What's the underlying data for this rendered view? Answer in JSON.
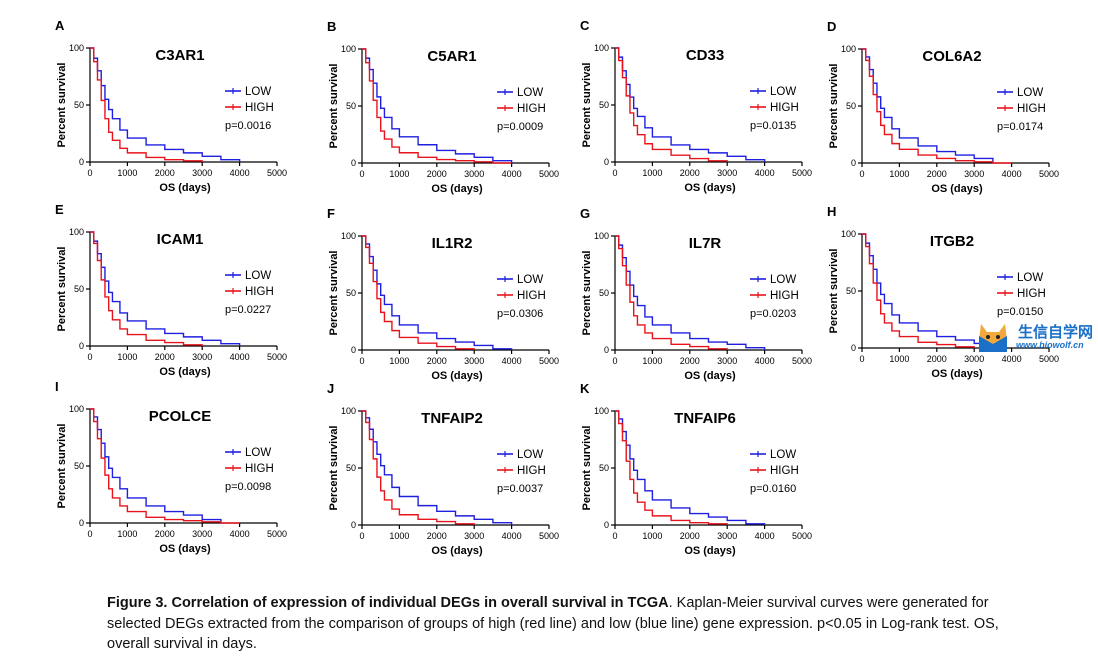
{
  "figure_caption": {
    "label": "Figure 3",
    "title": "Correlation of expression of individual DEGs in overall survival in TCGA",
    "body": "Kaplan-Meier survival curves were generated for selected DEGs extracted from the comparison of groups of high (red line) and low (blue line) gene expression. p<0.05 in Log-rank test. OS, overall survival in days."
  },
  "watermark": {
    "title": "生信自学网",
    "url": "www.biowolf.cn"
  },
  "colors": {
    "low": "#1f1fe0",
    "high": "#e8141b"
  },
  "chart_data": [
    {
      "panel": "A",
      "type": "line",
      "title": "C3AR1",
      "xlabel": "OS (days)",
      "ylabel": "Percent survival",
      "xticks": [
        "0",
        "1000",
        "2000",
        "3000",
        "4000",
        "5000"
      ],
      "yticks": [
        "0",
        "50",
        "100"
      ],
      "xlim": [
        0,
        5000
      ],
      "ylim": [
        0,
        100
      ],
      "p_value": "p=0.0016",
      "legend": [
        "LOW",
        "HIGH"
      ],
      "legend_position": "right",
      "series": [
        {
          "name": "LOW",
          "x": [
            0,
            100,
            200,
            300,
            400,
            500,
            600,
            800,
            1000,
            1500,
            2000,
            2500,
            3000,
            3500,
            4000
          ],
          "y": [
            100,
            91,
            80,
            67,
            55,
            46,
            38,
            28,
            21,
            15,
            11,
            8,
            5,
            2,
            0
          ]
        },
        {
          "name": "HIGH",
          "x": [
            0,
            100,
            200,
            300,
            400,
            500,
            600,
            800,
            1000,
            1500,
            2000,
            2500,
            3000
          ],
          "y": [
            100,
            88,
            72,
            54,
            38,
            26,
            19,
            12,
            8,
            4,
            2,
            1,
            0
          ]
        }
      ]
    },
    {
      "panel": "B",
      "type": "line",
      "title": "C5AR1",
      "xlabel": "OS (days)",
      "ylabel": "Percent survival",
      "xticks": [
        "0",
        "1000",
        "2000",
        "3000",
        "4000",
        "5000"
      ],
      "yticks": [
        "0",
        "50",
        "100"
      ],
      "xlim": [
        0,
        5000
      ],
      "ylim": [
        0,
        100
      ],
      "p_value": "p=0.0009",
      "legend": [
        "LOW",
        "HIGH"
      ],
      "legend_position": "right",
      "series": [
        {
          "name": "LOW",
          "x": [
            0,
            100,
            200,
            300,
            400,
            500,
            600,
            800,
            1000,
            1500,
            2000,
            2500,
            3000,
            3500,
            4000
          ],
          "y": [
            100,
            92,
            82,
            70,
            58,
            48,
            40,
            30,
            23,
            16,
            11,
            8,
            5,
            2,
            0
          ]
        },
        {
          "name": "HIGH",
          "x": [
            0,
            100,
            200,
            300,
            400,
            500,
            600,
            800,
            1000,
            1500,
            2000,
            2500,
            3000,
            3500,
            4000
          ],
          "y": [
            100,
            88,
            72,
            55,
            40,
            28,
            21,
            14,
            9,
            5,
            3,
            2,
            1,
            0,
            0
          ]
        }
      ]
    },
    {
      "panel": "C",
      "type": "line",
      "title": "CD33",
      "xlabel": "OS (days)",
      "ylabel": "Percent survival",
      "xticks": [
        "0",
        "1000",
        "2000",
        "3000",
        "4000",
        "5000"
      ],
      "yticks": [
        "0",
        "50",
        "100"
      ],
      "xlim": [
        0,
        5000
      ],
      "ylim": [
        0,
        100
      ],
      "p_value": "p=0.0135",
      "legend": [
        "LOW",
        "HIGH"
      ],
      "legend_position": "right",
      "series": [
        {
          "name": "LOW",
          "x": [
            0,
            100,
            200,
            300,
            400,
            500,
            600,
            800,
            1000,
            1500,
            2000,
            2500,
            3000,
            3500,
            4000
          ],
          "y": [
            100,
            92,
            80,
            68,
            57,
            47,
            40,
            30,
            22,
            15,
            11,
            8,
            5,
            2,
            0
          ]
        },
        {
          "name": "HIGH",
          "x": [
            0,
            100,
            200,
            300,
            400,
            500,
            600,
            800,
            1000,
            1500,
            2000,
            2500,
            3000
          ],
          "y": [
            100,
            89,
            74,
            58,
            43,
            32,
            24,
            16,
            11,
            6,
            3,
            1,
            0
          ]
        }
      ]
    },
    {
      "panel": "D",
      "type": "line",
      "title": "COL6A2",
      "xlabel": "OS (days)",
      "ylabel": "Percent survival",
      "xticks": [
        "0",
        "1000",
        "2000",
        "3000",
        "4000",
        "5000"
      ],
      "yticks": [
        "0",
        "50",
        "100"
      ],
      "xlim": [
        0,
        5000
      ],
      "ylim": [
        0,
        100
      ],
      "p_value": "p=0.0174",
      "legend": [
        "LOW",
        "HIGH"
      ],
      "legend_position": "right",
      "series": [
        {
          "name": "LOW",
          "x": [
            0,
            100,
            200,
            300,
            400,
            500,
            600,
            800,
            1000,
            1500,
            2000,
            2500,
            3000,
            3500
          ],
          "y": [
            100,
            93,
            82,
            70,
            58,
            48,
            40,
            30,
            22,
            15,
            10,
            7,
            4,
            0
          ]
        },
        {
          "name": "HIGH",
          "x": [
            0,
            100,
            200,
            300,
            400,
            500,
            600,
            800,
            1000,
            1500,
            2000,
            2500,
            3000,
            3500,
            4000
          ],
          "y": [
            100,
            90,
            76,
            60,
            45,
            33,
            25,
            17,
            12,
            7,
            4,
            2,
            1,
            0,
            0
          ]
        }
      ]
    },
    {
      "panel": "E",
      "type": "line",
      "title": "ICAM1",
      "xlabel": "OS (days)",
      "ylabel": "Percent survival",
      "xticks": [
        "0",
        "1000",
        "2000",
        "3000",
        "4000",
        "5000"
      ],
      "yticks": [
        "0",
        "50",
        "100"
      ],
      "xlim": [
        0,
        5000
      ],
      "ylim": [
        0,
        100
      ],
      "p_value": "p=0.0227",
      "legend": [
        "LOW",
        "HIGH"
      ],
      "legend_position": "right",
      "series": [
        {
          "name": "LOW",
          "x": [
            0,
            100,
            200,
            300,
            400,
            500,
            600,
            800,
            1000,
            1500,
            2000,
            2500,
            3000,
            3500,
            4000
          ],
          "y": [
            100,
            92,
            81,
            69,
            57,
            47,
            39,
            29,
            22,
            15,
            11,
            8,
            5,
            2,
            0
          ]
        },
        {
          "name": "HIGH",
          "x": [
            0,
            100,
            200,
            300,
            400,
            500,
            600,
            800,
            1000,
            1500,
            2000,
            2500,
            3000
          ],
          "y": [
            100,
            90,
            75,
            58,
            43,
            31,
            23,
            15,
            10,
            5,
            3,
            1,
            0
          ]
        }
      ]
    },
    {
      "panel": "F",
      "type": "line",
      "title": "IL1R2",
      "xlabel": "OS (days)",
      "ylabel": "Percent survival",
      "xticks": [
        "0",
        "1000",
        "2000",
        "3000",
        "4000",
        "5000"
      ],
      "yticks": [
        "0",
        "50",
        "100"
      ],
      "xlim": [
        0,
        5000
      ],
      "ylim": [
        0,
        100
      ],
      "p_value": "p=0.0306",
      "legend": [
        "LOW",
        "HIGH"
      ],
      "legend_position": "right",
      "series": [
        {
          "name": "LOW",
          "x": [
            0,
            100,
            200,
            300,
            400,
            500,
            600,
            800,
            1000,
            1500,
            2000,
            2500,
            3000,
            3500,
            4000
          ],
          "y": [
            100,
            93,
            82,
            70,
            58,
            48,
            40,
            30,
            22,
            15,
            10,
            7,
            4,
            1,
            0
          ]
        },
        {
          "name": "HIGH",
          "x": [
            0,
            100,
            200,
            300,
            400,
            500,
            600,
            800,
            1000,
            1500,
            2000,
            2500,
            3000
          ],
          "y": [
            100,
            90,
            76,
            60,
            45,
            33,
            25,
            17,
            11,
            6,
            3,
            1,
            0
          ]
        }
      ]
    },
    {
      "panel": "G",
      "type": "line",
      "title": "IL7R",
      "xlabel": "OS (days)",
      "ylabel": "Percent survival",
      "xticks": [
        "0",
        "1000",
        "2000",
        "3000",
        "4000",
        "5000"
      ],
      "yticks": [
        "0",
        "50",
        "100"
      ],
      "xlim": [
        0,
        5000
      ],
      "ylim": [
        0,
        100
      ],
      "p_value": "p=0.0203",
      "legend": [
        "LOW",
        "HIGH"
      ],
      "legend_position": "right",
      "series": [
        {
          "name": "LOW",
          "x": [
            0,
            100,
            200,
            300,
            400,
            500,
            600,
            800,
            1000,
            1500,
            2000,
            2500,
            3000,
            3500,
            4000
          ],
          "y": [
            100,
            92,
            81,
            69,
            57,
            47,
            39,
            29,
            22,
            15,
            10,
            7,
            5,
            2,
            0
          ]
        },
        {
          "name": "HIGH",
          "x": [
            0,
            100,
            200,
            300,
            400,
            500,
            600,
            800,
            1000,
            1500,
            2000,
            2500,
            3000
          ],
          "y": [
            100,
            89,
            74,
            57,
            42,
            30,
            22,
            15,
            10,
            5,
            3,
            1,
            0
          ]
        }
      ]
    },
    {
      "panel": "H",
      "type": "line",
      "title": "ITGB2",
      "xlabel": "OS (days)",
      "ylabel": "Percent survival",
      "xticks": [
        "0",
        "1000",
        "2000",
        "3000",
        "4000",
        "5000"
      ],
      "yticks": [
        "0",
        "50",
        "100"
      ],
      "xlim": [
        0,
        5000
      ],
      "ylim": [
        0,
        100
      ],
      "p_value": "p=0.0150",
      "legend": [
        "LOW",
        "HIGH"
      ],
      "legend_position": "right",
      "series": [
        {
          "name": "LOW",
          "x": [
            0,
            100,
            200,
            300,
            400,
            500,
            600,
            800,
            1000,
            1500,
            2000,
            2500,
            3000,
            3500
          ],
          "y": [
            100,
            92,
            81,
            69,
            57,
            47,
            39,
            29,
            22,
            15,
            10,
            7,
            4,
            0
          ]
        },
        {
          "name": "HIGH",
          "x": [
            0,
            100,
            200,
            300,
            400,
            500,
            600,
            800,
            1000,
            1500,
            2000,
            2500,
            3000
          ],
          "y": [
            100,
            89,
            74,
            57,
            42,
            30,
            22,
            15,
            10,
            5,
            3,
            1,
            0
          ]
        }
      ]
    },
    {
      "panel": "I",
      "type": "line",
      "title": "PCOLCE",
      "xlabel": "OS (days)",
      "ylabel": "Percent survival",
      "xticks": [
        "0",
        "1000",
        "2000",
        "3000",
        "4000",
        "5000"
      ],
      "yticks": [
        "0",
        "50",
        "100"
      ],
      "xlim": [
        0,
        5000
      ],
      "ylim": [
        0,
        100
      ],
      "p_value": "p=0.0098",
      "legend": [
        "LOW",
        "HIGH"
      ],
      "legend_position": "right",
      "series": [
        {
          "name": "LOW",
          "x": [
            0,
            100,
            200,
            300,
            400,
            500,
            600,
            800,
            1000,
            1500,
            2000,
            2500,
            3000,
            3500
          ],
          "y": [
            100,
            93,
            82,
            70,
            58,
            48,
            40,
            30,
            22,
            15,
            10,
            7,
            3,
            0
          ]
        },
        {
          "name": "HIGH",
          "x": [
            0,
            100,
            200,
            300,
            400,
            500,
            600,
            800,
            1000,
            1500,
            2000,
            2500,
            3000,
            3500,
            4000
          ],
          "y": [
            100,
            89,
            74,
            57,
            42,
            30,
            22,
            15,
            10,
            5,
            3,
            2,
            1,
            0,
            0
          ]
        }
      ]
    },
    {
      "panel": "J",
      "type": "line",
      "title": "TNFAIP2",
      "xlabel": "OS (days)",
      "ylabel": "Percent survival",
      "xticks": [
        "0",
        "1000",
        "2000",
        "3000",
        "4000",
        "5000"
      ],
      "yticks": [
        "0",
        "50",
        "100"
      ],
      "xlim": [
        0,
        5000
      ],
      "ylim": [
        0,
        100
      ],
      "p_value": "p=0.0037",
      "legend": [
        "LOW",
        "HIGH"
      ],
      "legend_position": "right",
      "series": [
        {
          "name": "LOW",
          "x": [
            0,
            100,
            200,
            300,
            400,
            500,
            600,
            800,
            1000,
            1500,
            2000,
            2500,
            3000,
            3500,
            4000
          ],
          "y": [
            100,
            94,
            84,
            73,
            62,
            52,
            44,
            33,
            25,
            17,
            12,
            8,
            5,
            2,
            0
          ]
        },
        {
          "name": "HIGH",
          "x": [
            0,
            100,
            200,
            300,
            400,
            500,
            600,
            800,
            1000,
            1500,
            2000,
            2500,
            3000
          ],
          "y": [
            100,
            90,
            75,
            58,
            42,
            30,
            22,
            14,
            9,
            5,
            3,
            1,
            0
          ]
        }
      ]
    },
    {
      "panel": "K",
      "type": "line",
      "title": "TNFAIP6",
      "xlabel": "OS (days)",
      "ylabel": "Percent survival",
      "xticks": [
        "0",
        "1000",
        "2000",
        "3000",
        "4000",
        "5000"
      ],
      "yticks": [
        "0",
        "50",
        "100"
      ],
      "xlim": [
        0,
        5000
      ],
      "ylim": [
        0,
        100
      ],
      "p_value": "p=0.0160",
      "legend": [
        "LOW",
        "HIGH"
      ],
      "legend_position": "right",
      "series": [
        {
          "name": "LOW",
          "x": [
            0,
            100,
            200,
            300,
            400,
            500,
            600,
            800,
            1000,
            1500,
            2000,
            2500,
            3000,
            3500,
            4000
          ],
          "y": [
            100,
            93,
            82,
            70,
            58,
            48,
            40,
            30,
            22,
            15,
            10,
            7,
            4,
            1,
            0
          ]
        },
        {
          "name": "HIGH",
          "x": [
            0,
            100,
            200,
            300,
            400,
            500,
            600,
            800,
            1000,
            1500,
            2000,
            2500,
            3000
          ],
          "y": [
            100,
            89,
            74,
            56,
            40,
            28,
            20,
            13,
            8,
            4,
            2,
            1,
            0
          ]
        }
      ]
    }
  ]
}
